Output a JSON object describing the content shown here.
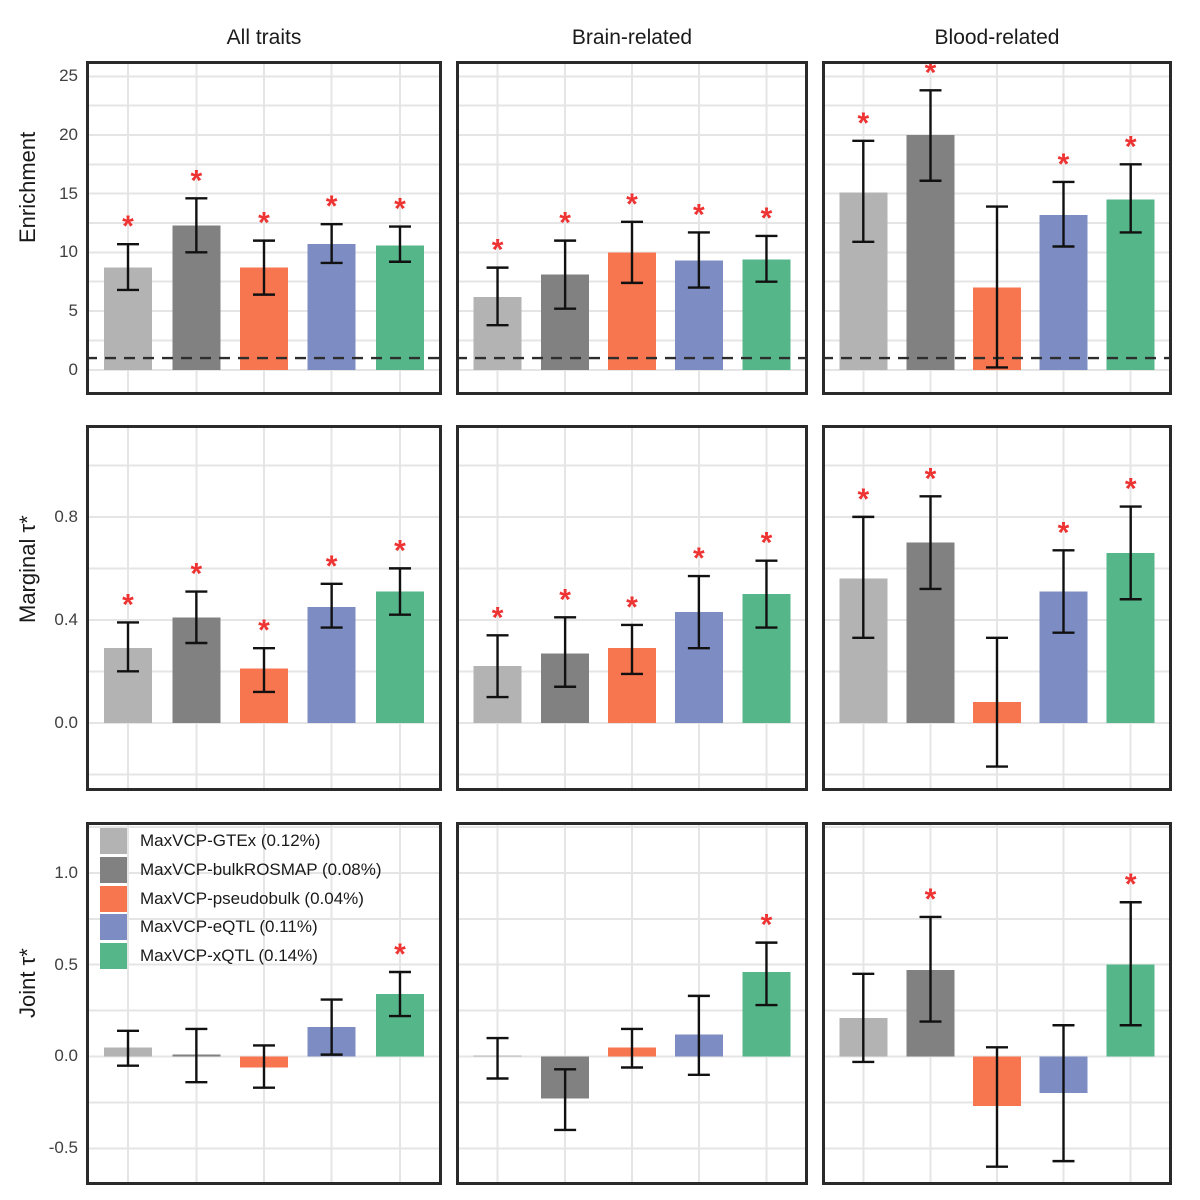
{
  "figure": {
    "col_titles": [
      "All traits",
      "Brain-related",
      "Blood-related"
    ],
    "row_labels": [
      "Enrichment",
      "Marginal τ*",
      "Joint τ*"
    ]
  },
  "legend": {
    "items": [
      {
        "label": "MaxVCP-GTEx (0.12%)",
        "color": "#b3b3b3"
      },
      {
        "label": "MaxVCP-bulkROSMAP (0.08%)",
        "color": "#818181"
      },
      {
        "label": "MaxVCP-pseudobulk (0.04%)",
        "color": "#f7764f"
      },
      {
        "label": "MaxVCP-eQTL (0.11%)",
        "color": "#7d8dc3"
      },
      {
        "label": "MaxVCP-xQTL (0.14%)",
        "color": "#54b689"
      }
    ]
  },
  "chart_data": {
    "type": "bar",
    "series": [
      "MaxVCP-GTEx",
      "MaxVCP-bulkROSMAP",
      "MaxVCP-pseudobulk",
      "MaxVCP-eQTL",
      "MaxVCP-xQTL"
    ],
    "series_colors": [
      "#b3b3b3",
      "#818181",
      "#f7764f",
      "#7d8dc3",
      "#54b689"
    ],
    "columns": [
      "All traits",
      "Brain-related",
      "Blood-related"
    ],
    "sig_marker": "*",
    "sig_color": "#ee3333",
    "grid_color": "#e5e5e5",
    "border_color": "#2a2a2a",
    "errorbar_color": "#111111",
    "rows": [
      {
        "label": "Enrichment",
        "slug": "enrichment",
        "ylim": [
          -2.15,
          26.3
        ],
        "yticks": [
          0,
          5,
          10,
          15,
          20,
          25
        ],
        "ytick_labels": [
          "0",
          "5",
          "10",
          "15",
          "20",
          "25"
        ],
        "grid_step": 2.5,
        "dashed_hline": 1,
        "panels": [
          {
            "col": "All traits",
            "values": [
              8.7,
              12.3,
              8.7,
              10.7,
              10.6
            ],
            "err_low": [
              6.8,
              10.0,
              6.4,
              9.1,
              9.2
            ],
            "err_high": [
              10.7,
              14.6,
              11.0,
              12.4,
              12.2
            ],
            "significant": [
              true,
              true,
              true,
              true,
              true
            ]
          },
          {
            "col": "Brain-related",
            "values": [
              6.2,
              8.1,
              10.0,
              9.3,
              9.4
            ],
            "err_low": [
              3.8,
              5.2,
              7.4,
              7.0,
              7.5
            ],
            "err_high": [
              8.7,
              11.0,
              12.6,
              11.7,
              11.4
            ],
            "significant": [
              true,
              true,
              true,
              true,
              true
            ]
          },
          {
            "col": "Blood-related",
            "values": [
              15.1,
              20.0,
              7.0,
              13.2,
              14.5
            ],
            "err_low": [
              10.9,
              16.1,
              0.2,
              10.5,
              11.7
            ],
            "err_high": [
              19.5,
              23.8,
              13.9,
              16.0,
              17.5
            ],
            "significant": [
              true,
              true,
              false,
              true,
              true
            ]
          }
        ]
      },
      {
        "label": "Marginal τ*",
        "slug": "marginal-tau",
        "ylim": [
          -0.265,
          1.157
        ],
        "yticks": [
          0.0,
          0.4,
          0.8
        ],
        "ytick_labels": [
          "0.0",
          "0.4",
          "0.8"
        ],
        "grid_step": 0.2,
        "dashed_hline": null,
        "panels": [
          {
            "col": "All traits",
            "values": [
              0.29,
              0.41,
              0.21,
              0.45,
              0.51
            ],
            "err_low": [
              0.2,
              0.31,
              0.12,
              0.37,
              0.42
            ],
            "err_high": [
              0.39,
              0.51,
              0.29,
              0.54,
              0.6
            ],
            "significant": [
              true,
              true,
              true,
              true,
              true
            ]
          },
          {
            "col": "Brain-related",
            "values": [
              0.22,
              0.27,
              0.29,
              0.43,
              0.5
            ],
            "err_low": [
              0.1,
              0.14,
              0.19,
              0.29,
              0.37
            ],
            "err_high": [
              0.34,
              0.41,
              0.38,
              0.57,
              0.63
            ],
            "significant": [
              true,
              true,
              true,
              true,
              true
            ]
          },
          {
            "col": "Blood-related",
            "values": [
              0.56,
              0.7,
              0.08,
              0.51,
              0.66
            ],
            "err_low": [
              0.33,
              0.52,
              -0.17,
              0.35,
              0.48
            ],
            "err_high": [
              0.8,
              0.88,
              0.33,
              0.67,
              0.84
            ],
            "significant": [
              true,
              true,
              false,
              true,
              true
            ]
          }
        ]
      },
      {
        "label": "Joint τ*",
        "slug": "joint-tau",
        "ylim": [
          -0.7,
          1.277
        ],
        "yticks": [
          -0.5,
          0.0,
          0.5,
          1.0
        ],
        "ytick_labels": [
          "-0.5",
          "0.0",
          "0.5",
          "1.0"
        ],
        "grid_step": 0.25,
        "dashed_hline": null,
        "panels": [
          {
            "col": "All traits",
            "values": [
              0.05,
              0.01,
              -0.06,
              0.16,
              0.34
            ],
            "err_low": [
              -0.05,
              -0.14,
              -0.17,
              0.01,
              0.22
            ],
            "err_high": [
              0.14,
              0.15,
              0.06,
              0.31,
              0.46
            ],
            "significant": [
              false,
              false,
              false,
              false,
              true
            ]
          },
          {
            "col": "Brain-related",
            "values": [
              0.005,
              -0.23,
              0.05,
              0.12,
              0.46
            ],
            "err_low": [
              -0.12,
              -0.4,
              -0.06,
              -0.1,
              0.28
            ],
            "err_high": [
              0.1,
              -0.07,
              0.15,
              0.33,
              0.62
            ],
            "significant": [
              false,
              false,
              false,
              false,
              true
            ]
          },
          {
            "col": "Blood-related",
            "values": [
              0.21,
              0.47,
              -0.27,
              -0.2,
              0.5
            ],
            "err_low": [
              -0.03,
              0.19,
              -0.6,
              -0.57,
              0.17
            ],
            "err_high": [
              0.45,
              0.76,
              0.05,
              0.17,
              0.84
            ],
            "significant": [
              false,
              true,
              false,
              false,
              true
            ]
          }
        ]
      }
    ]
  }
}
